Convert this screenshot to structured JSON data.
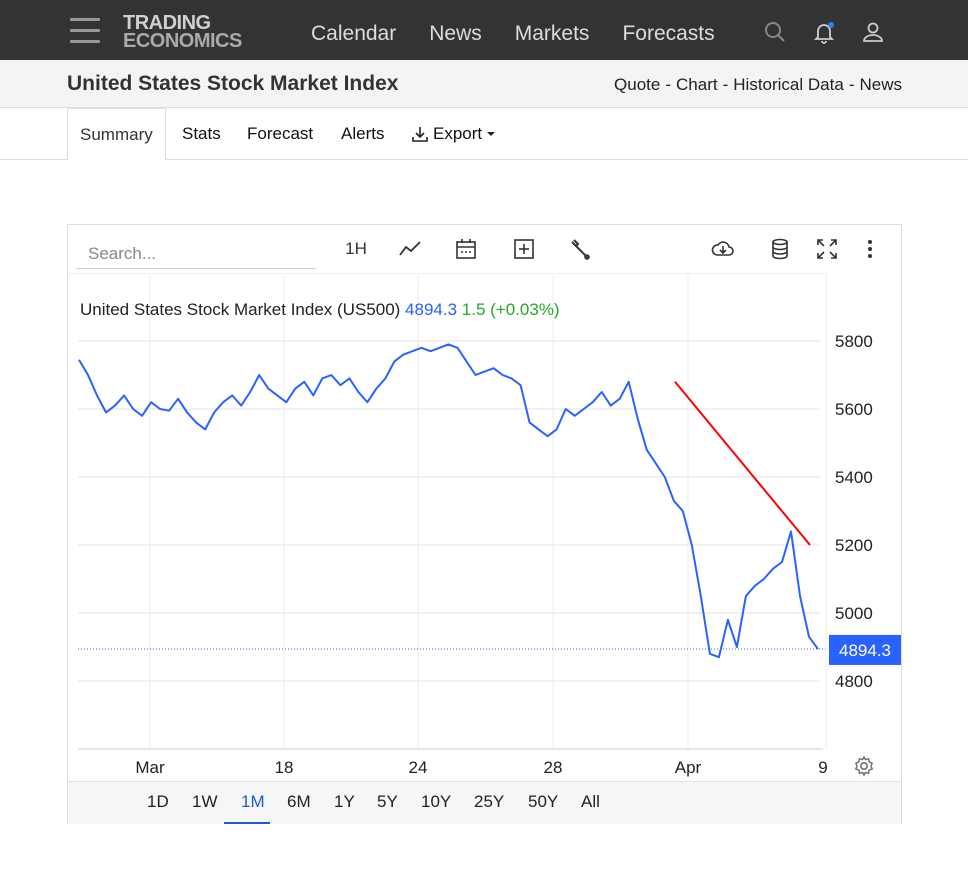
{
  "nav": {
    "logo_line1": "TRADING",
    "logo_line2": "ECONOMICS",
    "links": [
      "Calendar",
      "News",
      "Markets",
      "Forecasts"
    ],
    "icons": [
      "search-icon",
      "bell-icon",
      "user-icon"
    ]
  },
  "title_bar": {
    "title": "United States Stock Market Index",
    "links": [
      "Quote",
      "Chart",
      "Historical Data",
      "News"
    ]
  },
  "tabs": [
    "Summary",
    "Stats",
    "Forecast",
    "Alerts",
    "Export"
  ],
  "toolbar": {
    "search_placeholder": "Search...",
    "interval": "1H"
  },
  "ranges": [
    "1D",
    "1W",
    "1M",
    "6M",
    "1Y",
    "5Y",
    "10Y",
    "25Y",
    "50Y",
    "All"
  ],
  "active_range": "1M",
  "colors": {
    "line": "#2962ff",
    "trend": "#ff0000",
    "change": "#22aa22",
    "price_tag": "#2962ff"
  },
  "chart_data": {
    "type": "line",
    "title": "United States Stock Market Index (US500)",
    "last_value_text": "4894.3",
    "change_text": "1.5 (+0.03%)",
    "last_value": 4894.3,
    "y_ticks": [
      5800,
      5600,
      5400,
      5200,
      5000,
      4800
    ],
    "ylim": [
      4600,
      5900
    ],
    "x_ticks": [
      "Mar",
      "18",
      "24",
      "28",
      "Apr",
      "9"
    ],
    "series": [
      {
        "values": [
          5745,
          5700,
          5640,
          5590,
          5610,
          5640,
          5600,
          5580,
          5620,
          5600,
          5595,
          5630,
          5590,
          5560,
          5540,
          5590,
          5620,
          5640,
          5610,
          5650,
          5700,
          5660,
          5640,
          5620,
          5660,
          5680,
          5640,
          5690,
          5700,
          5670,
          5690,
          5650,
          5620,
          5660,
          5690,
          5740,
          5760,
          5770,
          5780,
          5770,
          5780,
          5790,
          5780,
          5740,
          5700,
          5710,
          5720,
          5700,
          5690,
          5670,
          5560,
          5540,
          5520,
          5540,
          5600,
          5580,
          5600,
          5620,
          5650,
          5610,
          5630,
          5680,
          5570,
          5480,
          5440,
          5400,
          5330,
          5300,
          5200,
          5050,
          4880,
          4870,
          4980,
          4900,
          5050,
          5080,
          5100,
          5130,
          5150,
          5240,
          5050,
          4930,
          4894
        ]
      }
    ],
    "trend_line": {
      "start": 5680,
      "end": 5200
    }
  }
}
